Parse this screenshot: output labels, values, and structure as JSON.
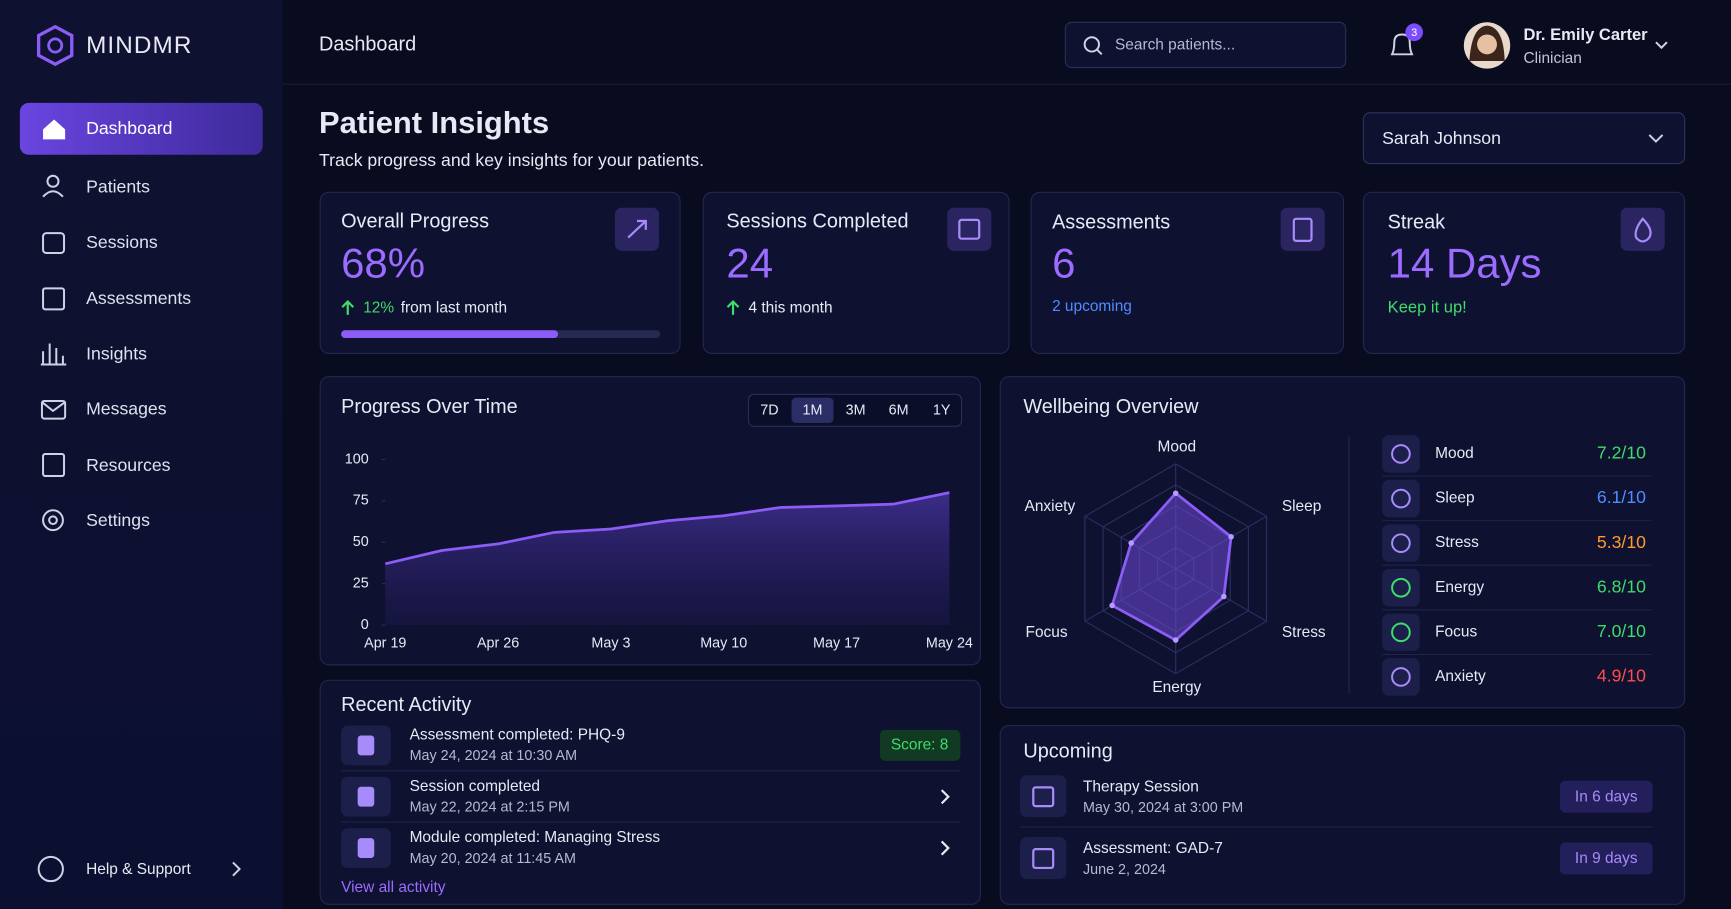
{
  "sidebar": {
    "brand": "MINDMR",
    "nav": [
      "Dashboard",
      "Patients",
      "Sessions",
      "Assessments",
      "Insights",
      "Messages",
      "Resources",
      "Settings"
    ],
    "help": "Help & Support"
  },
  "header": {
    "title": "Dashboard",
    "search_placeholder": "Search patients...",
    "notifications": "3",
    "user": {
      "name": "Dr. Emily Carter",
      "role": "Clinician"
    }
  },
  "page": {
    "title": "Patient Insights",
    "subtitle": "Track progress and key insights for your patients.",
    "patient": "Sarah Johnson"
  },
  "cards": [
    {
      "title": "Overall Progress",
      "value": "68%",
      "delta": "12%",
      "note": "from last month",
      "progress": 68
    },
    {
      "title": "Sessions Completed",
      "value": "24",
      "note": "4 this month"
    },
    {
      "title": "Assessments",
      "value": "6",
      "note": "2 upcoming"
    },
    {
      "title": "Streak",
      "value": "14 Days",
      "note": "Keep it up!"
    }
  ],
  "chart_data": [
    {
      "type": "line",
      "title": "Progress Over Time",
      "ranges": [
        "7D",
        "1M",
        "3M",
        "6M",
        "1Y"
      ],
      "categories": [
        "Apr 19",
        null,
        "Apr 26",
        null,
        "May 3",
        null,
        "May 10",
        null,
        "May 17",
        null,
        "May 24"
      ],
      "values": [
        37,
        45,
        49,
        56,
        58,
        63,
        66,
        71,
        72,
        73,
        80
      ],
      "color": "#8b5cf6",
      "ylim": [
        0,
        100
      ],
      "yticks": [
        0,
        25,
        50,
        75,
        100
      ]
    },
    {
      "type": "radar",
      "title": "Wellbeing Overview",
      "categories": [
        "Mood",
        "Sleep",
        "Stress",
        "Energy",
        "Focus",
        "Anxiety"
      ],
      "values": [
        7.2,
        6.1,
        5.3,
        6.8,
        7.0,
        4.9
      ],
      "value_labels": [
        "7.2/10",
        "6.1/10",
        "5.3/10",
        "6.8/10",
        "7.0/10",
        "4.9/10"
      ],
      "colors": [
        "#3ddc6b",
        "#4f8dff",
        "#ff9a2e",
        "#3ddc6b",
        "#3ddc6b",
        "#ff4d4d"
      ],
      "rlim": [
        0,
        10
      ],
      "color": "#8b5cf6"
    }
  ],
  "activity": {
    "title": "Recent Activity",
    "items": [
      {
        "title": "Assessment completed: PHQ-9",
        "time": "May 24, 2024 at 10:30 AM",
        "badge": "Score: 8"
      },
      {
        "title": "Session completed",
        "time": "May 22, 2024 at 2:15 PM"
      },
      {
        "title": "Module completed: Managing Stress",
        "time": "May 20, 2024 at 11:45 AM"
      }
    ],
    "link": "View all activity"
  },
  "upcoming": {
    "title": "Upcoming",
    "items": [
      {
        "title": "Therapy Session",
        "time": "May 30, 2024 at 3:00 PM",
        "badge": "In 6 days"
      },
      {
        "title": "Assessment: GAD-7",
        "time": "June 2, 2024",
        "badge": "In 9 days"
      }
    ]
  }
}
